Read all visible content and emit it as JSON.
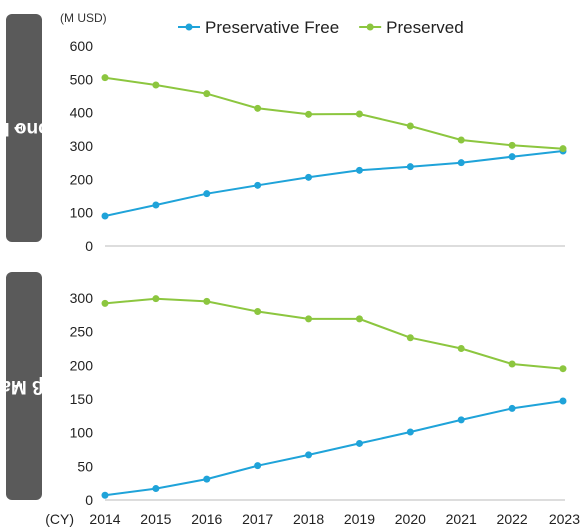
{
  "unit_label": "(M USD)",
  "x_axis_prefix": "(CY)",
  "legend": [
    {
      "label": "Preservative Free",
      "color": "#1fa3d9"
    },
    {
      "label": "Preserved",
      "color": "#8cc63f"
    }
  ],
  "chart_data": [
    {
      "type": "line",
      "panel_label": "PG mono Market",
      "panel_label_sup": "1",
      "x": [
        "2014",
        "2015",
        "2016",
        "2017",
        "2018",
        "2019",
        "2020",
        "2021",
        "2022",
        "2023"
      ],
      "ylim": [
        0,
        600
      ],
      "yticks": [
        0,
        100,
        200,
        300,
        400,
        500,
        600
      ],
      "series": [
        {
          "name": "Preservative Free",
          "color": "#1fa3d9",
          "values": [
            90,
            123,
            157,
            182,
            206,
            227,
            238,
            250,
            268,
            285
          ]
        },
        {
          "name": "Preserved",
          "color": "#8cc63f",
          "values": [
            505,
            483,
            457,
            413,
            395,
            396,
            360,
            318,
            302,
            292
          ]
        }
      ]
    },
    {
      "type": "line",
      "panel_label": "PG+β Market",
      "panel_label_sup": "1",
      "x": [
        "2014",
        "2015",
        "2016",
        "2017",
        "2018",
        "2019",
        "2020",
        "2021",
        "2022",
        "2023"
      ],
      "ylim": [
        0,
        300
      ],
      "yticks": [
        0,
        50,
        100,
        150,
        200,
        250,
        300
      ],
      "series": [
        {
          "name": "Preservative Free",
          "color": "#1fa3d9",
          "values": [
            7,
            17,
            31,
            51,
            67,
            84,
            101,
            119,
            136,
            147
          ]
        },
        {
          "name": "Preserved",
          "color": "#8cc63f",
          "values": [
            292,
            299,
            295,
            280,
            269,
            269,
            241,
            225,
            202,
            195
          ]
        }
      ]
    }
  ]
}
